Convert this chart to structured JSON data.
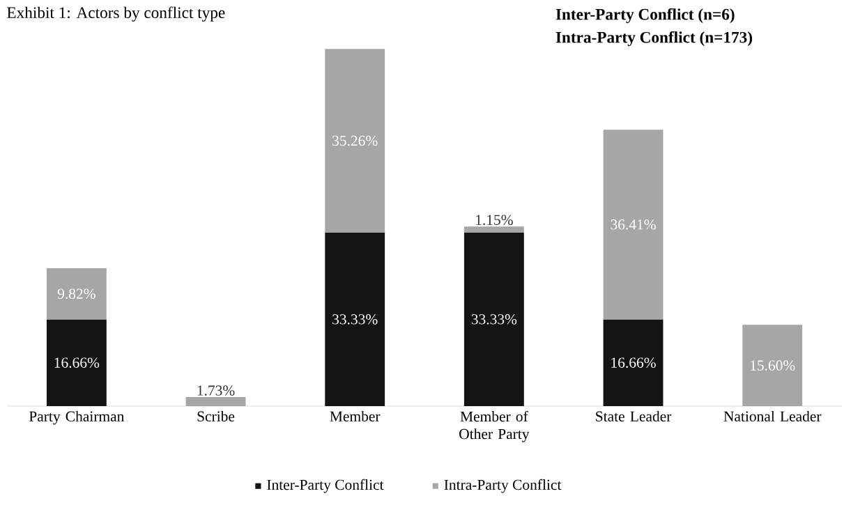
{
  "chart_data": {
    "type": "bar",
    "title": "Exhibit 1: Actors by conflict type",
    "annotations": [
      "Inter-Party Conflict (n=6)",
      "Intra-Party Conflict (n=173)"
    ],
    "categories": [
      "Party Chairman",
      "Scribe",
      "Member",
      "Member of Other Party",
      "State Leader",
      "National Leader"
    ],
    "stacked": true,
    "series": [
      {
        "name": "Inter-Party Conflict",
        "color": "#141414",
        "values": [
          16.66,
          null,
          33.33,
          33.33,
          16.66,
          null
        ],
        "value_labels": [
          "16.66%",
          null,
          "33.33%",
          "33.33%",
          "16.66%",
          null
        ]
      },
      {
        "name": "Intra-Party Conflict",
        "color": "#a6a6a6",
        "values": [
          9.82,
          1.73,
          35.26,
          1.15,
          36.41,
          15.6
        ],
        "value_labels": [
          "9.82%",
          "1.73%",
          "35.26%",
          "1.15%",
          "36.41%",
          "15.60%"
        ]
      }
    ],
    "tick_labels": "x",
    "legend": "bottom"
  }
}
